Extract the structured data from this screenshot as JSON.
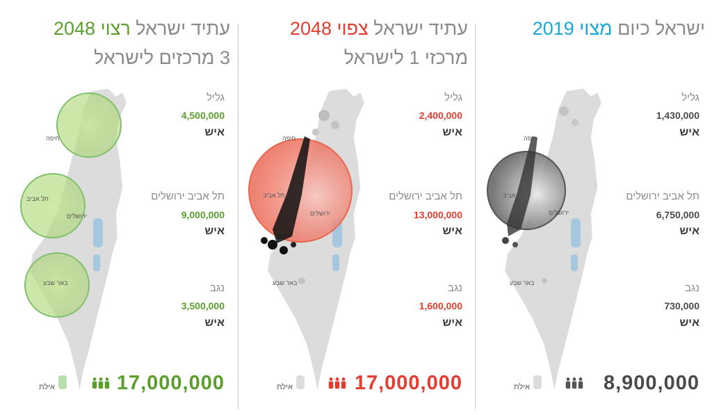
{
  "colors": {
    "green": "#5c9e2e",
    "red": "#e43d2f",
    "blue": "#1aa7d9",
    "dark": "#4a4a4a"
  },
  "panels": [
    {
      "id": "desired",
      "title_main": "עתיד ישראל",
      "title_highlight": "רצוי",
      "title_year": "2048",
      "subtitle": "3 מרכזים לישראל",
      "accent": "#5c9e2e",
      "regions": [
        {
          "label": "גליל",
          "value": "4,500,000",
          "unit": "איש"
        },
        {
          "label": "תל אביב ירושלים",
          "value": "9,000,000",
          "unit": "איש"
        },
        {
          "label": "נגב",
          "value": "3,500,000",
          "unit": "איש"
        }
      ],
      "total": "17,000,000",
      "map_labels": {
        "haifa": "חיפה",
        "telaviv": "תל אביב",
        "jerusalem": "ירושלים",
        "beersheva": "באר שבע",
        "eilat": "אילת"
      }
    },
    {
      "id": "expected",
      "title_main": "עתיד ישראל",
      "title_highlight": "צפוי",
      "title_year": "2048",
      "subtitle": "מרכזי 1 לישראל",
      "accent": "#e43d2f",
      "regions": [
        {
          "label": "גליל",
          "value": "2,400,000",
          "unit": "איש"
        },
        {
          "label": "תל אביב ירושלים",
          "value": "13,000,000",
          "unit": "איש"
        },
        {
          "label": "נגב",
          "value": "1,600,000",
          "unit": "איש"
        }
      ],
      "total": "17,000,000",
      "map_labels": {
        "haifa": "חיפה",
        "telaviv": "תל אביב",
        "jerusalem": "ירושלים",
        "beersheva": "באר שבע",
        "eilat": "אילת"
      }
    },
    {
      "id": "current",
      "title_main": "ישראל כיום",
      "title_highlight": "מצוי",
      "title_year": "2019",
      "subtitle": "",
      "accent": "#1aa7d9",
      "regions": [
        {
          "label": "גליל",
          "value": "1,430,000",
          "unit": "איש"
        },
        {
          "label": "תל אביב ירושלים",
          "value": "6,750,000",
          "unit": "איש"
        },
        {
          "label": "נגב",
          "value": "730,000",
          "unit": "איש"
        }
      ],
      "total": "8,900,000",
      "map_labels": {
        "haifa": "חיפה",
        "telaviv": "תל אביב",
        "jerusalem": "ירושלים",
        "beersheva": "באר שבע",
        "eilat": "אילת"
      }
    }
  ]
}
